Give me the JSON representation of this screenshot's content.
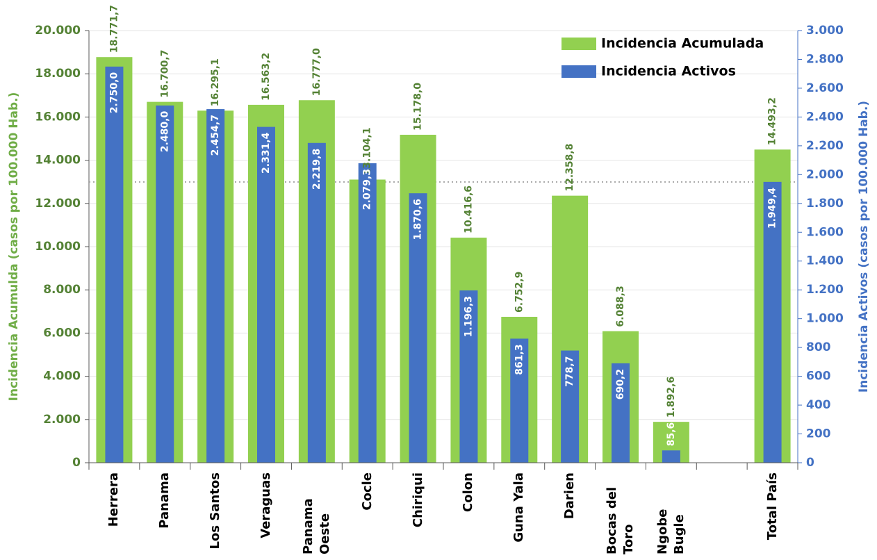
{
  "chart_data": {
    "type": "bar",
    "categories": [
      "Herrera",
      "Panama",
      "Los Santos",
      "Veraguas",
      "Panama Oeste",
      "Cocle",
      "Chiriqui",
      "Colon",
      "Guna Yala",
      "Darien",
      "Bocas del Toro",
      "Ngobe Bugle",
      null,
      "Total País"
    ],
    "series": [
      {
        "name": "Incidencia Acumulada",
        "color": "#92d050",
        "axis": "y",
        "values": [
          18771.7,
          16700.7,
          16295.1,
          16563.2,
          16777.0,
          13104.1,
          15178.0,
          10416.6,
          6752.9,
          12358.8,
          6088.3,
          1892.6,
          null,
          14493.2
        ],
        "value_labels": [
          "18.771,7",
          "16.700,7",
          "16.295,1",
          "16.563,2",
          "16.777,0",
          "13.104,1",
          "15.178,0",
          "10.416,6",
          "6.752,9",
          "12.358,8",
          "6.088,3",
          "1.892,6",
          null,
          "14.493,2"
        ]
      },
      {
        "name": "Incidencia Activos",
        "color": "#4472c4",
        "axis": "y2",
        "values": [
          2750.0,
          2480.0,
          2454.7,
          2331.4,
          2219.8,
          2079.3,
          1870.6,
          1196.3,
          861.3,
          778.7,
          690.2,
          85.6,
          null,
          1949.4
        ],
        "value_labels": [
          "2.750,0",
          "2.480,0",
          "2.454,7",
          "2.331,4",
          "2.219,8",
          "2.079,3",
          "1.870,6",
          "1.196,3",
          "861,3",
          "778,7",
          "690,2",
          "85,6",
          null,
          "1.949,4"
        ]
      }
    ],
    "y_label": "Incidencia Acumulda (casos por 100.000 Hab.)",
    "y2_label": "Incidencia Activos (casos por 100.000 Hab.)",
    "ylim": [
      0,
      20000
    ],
    "yticks": [
      0,
      {
        "value": 2000,
        "label": "2.000"
      },
      {
        "value": 4000,
        "label": "4.000"
      },
      {
        "value": 6000,
        "label": "6.000"
      },
      {
        "value": 8000,
        "label": "8.000"
      },
      {
        "value": 10000,
        "label": "10.000"
      },
      {
        "value": 12000,
        "label": "12.000"
      },
      {
        "value": 14000,
        "label": "14.000"
      },
      {
        "value": 16000,
        "label": "16.000"
      },
      {
        "value": 18000,
        "label": "18.000"
      },
      {
        "value": 20000,
        "label": "20.000"
      }
    ],
    "y2lim": [
      0,
      3000
    ],
    "y2ticks": [
      0,
      200,
      400,
      600,
      800,
      {
        "value": 1000,
        "label": "1.000"
      },
      {
        "value": 1200,
        "label": "1.200"
      },
      {
        "value": 1400,
        "label": "1.400"
      },
      {
        "value": 1600,
        "label": "1.600"
      },
      {
        "value": 1800,
        "label": "1.800"
      },
      {
        "value": 2000,
        "label": "2.000"
      },
      {
        "value": 2200,
        "label": "2.200"
      },
      {
        "value": 2400,
        "label": "2.400"
      },
      {
        "value": 2600,
        "label": "2.600"
      },
      {
        "value": 2800,
        "label": "2.800"
      },
      {
        "value": 3000,
        "label": "3.000"
      }
    ],
    "grid": true,
    "legend": "top-right"
  }
}
